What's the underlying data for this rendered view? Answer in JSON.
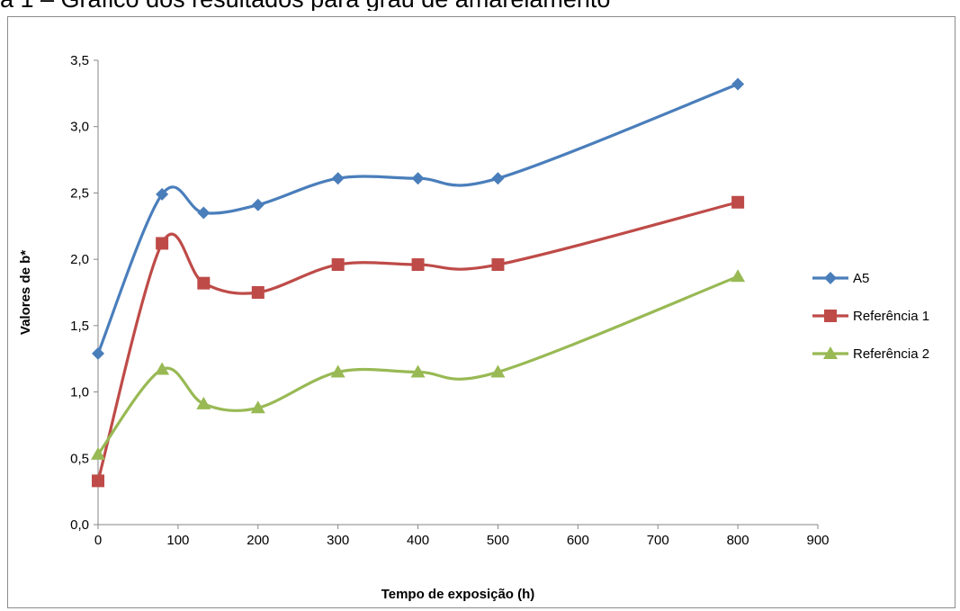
{
  "caption": "a 1 – Gráfico dos resultados para grau de amarelamento",
  "chart_data": {
    "type": "line",
    "title": "",
    "xlabel": "Tempo de exposição (h)",
    "ylabel": "Valores de b*",
    "xlim": [
      0,
      900
    ],
    "ylim": [
      0,
      3.5
    ],
    "x_ticks": [
      "0",
      "100",
      "200",
      "300",
      "400",
      "500",
      "600",
      "700",
      "800",
      "900"
    ],
    "y_ticks": [
      "0,0",
      "0,5",
      "1,0",
      "1,5",
      "2,0",
      "2,5",
      "3,0",
      "3,5"
    ],
    "grid": false,
    "legend_position": "right",
    "smooth": true,
    "series": [
      {
        "name": "A5",
        "color": "#4a7ebb",
        "marker": "diamond",
        "x": [
          0,
          80,
          132,
          200,
          300,
          400,
          500,
          800
        ],
        "y": [
          1.29,
          2.49,
          2.35,
          2.41,
          2.61,
          2.61,
          2.61,
          3.32
        ]
      },
      {
        "name": "Referência 1",
        "color": "#be4b48",
        "marker": "square",
        "x": [
          0,
          80,
          132,
          200,
          300,
          400,
          500,
          800
        ],
        "y": [
          0.33,
          2.12,
          1.82,
          1.75,
          1.96,
          1.96,
          1.96,
          2.43
        ]
      },
      {
        "name": "Referência 2",
        "color": "#98b954",
        "marker": "triangle",
        "x": [
          0,
          80,
          132,
          200,
          300,
          400,
          500,
          800
        ],
        "y": [
          0.53,
          1.17,
          0.91,
          0.88,
          1.15,
          1.15,
          1.15,
          1.87
        ]
      }
    ]
  }
}
